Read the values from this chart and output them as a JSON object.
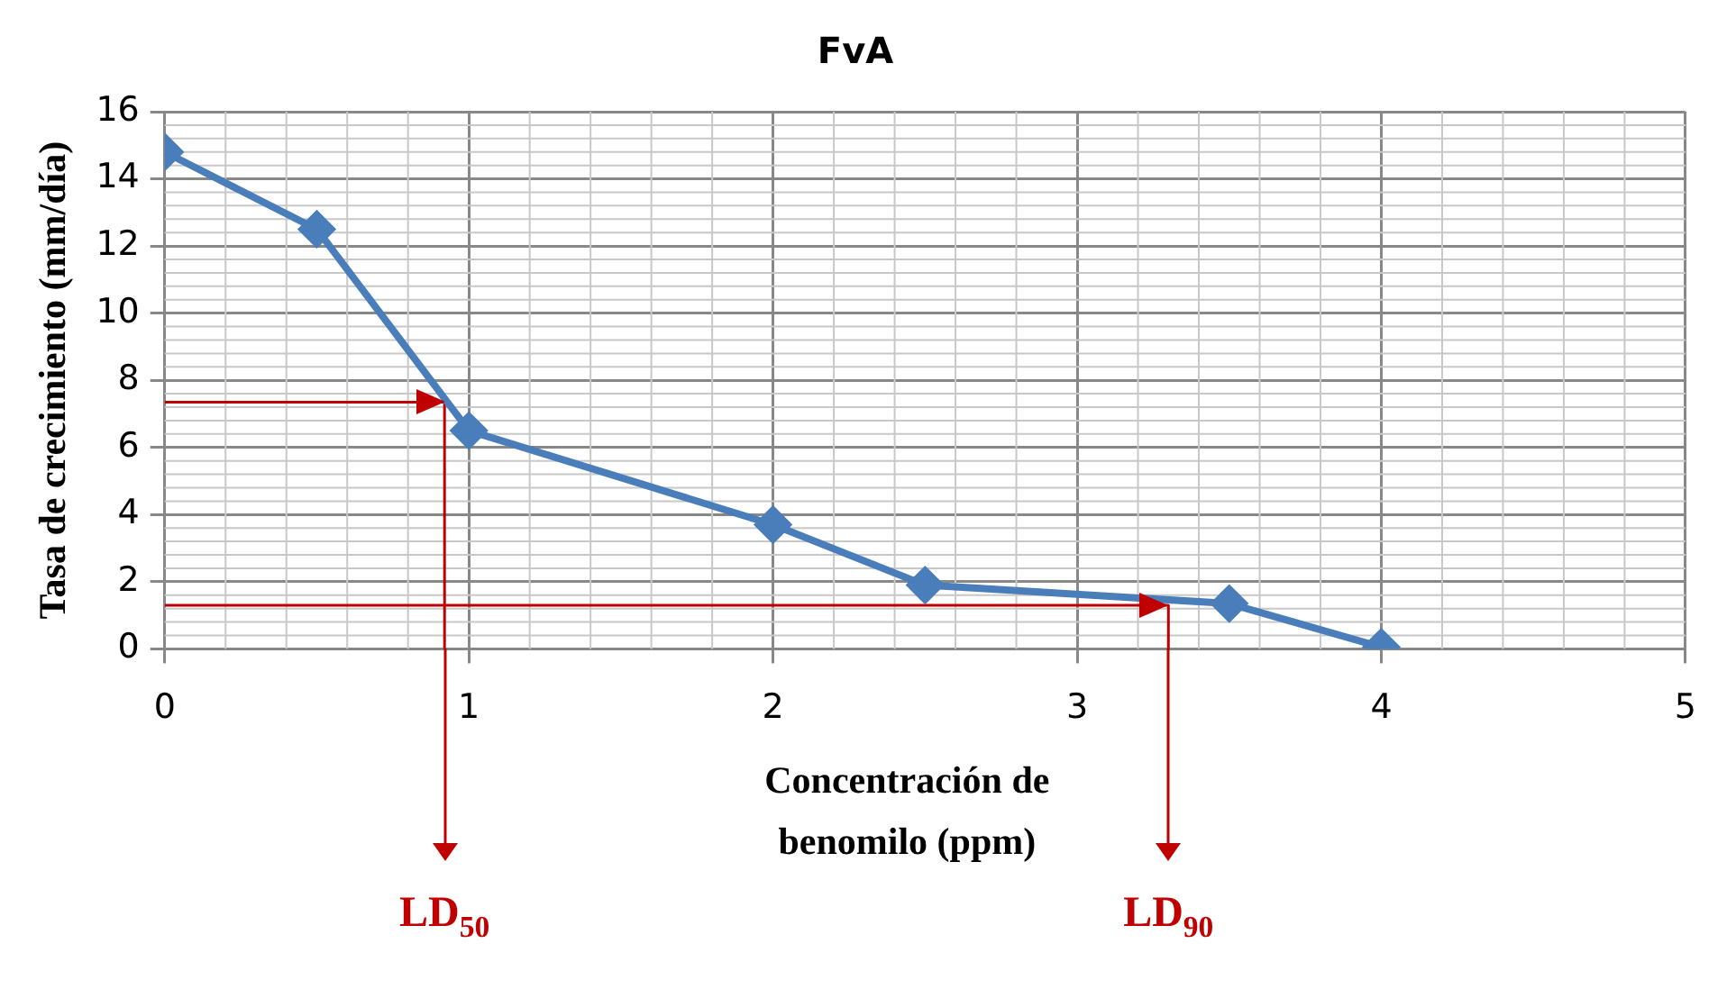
{
  "chart_data": {
    "type": "line",
    "title": "FvA",
    "xlabel": "Concentración de benomilo (ppm)",
    "ylabel": "Tasa de crecimiento (mm/día)",
    "x": [
      0,
      0.5,
      1,
      2,
      2.5,
      3.5,
      4
    ],
    "series": [
      {
        "color": "#4a7ebb",
        "values": [
          14.8,
          12.5,
          6.5,
          3.7,
          1.9,
          1.35,
          0.05
        ]
      },
      {
        "type": "line",
        "color": "#c00000",
        "marker": "none",
        "x": [
          0,
          0.92,
          0.92
        ],
        "values": [
          7.35,
          7.35,
          0
        ]
      },
      {
        "type": "line",
        "color": "#c00000",
        "marker": "none",
        "x": [
          0,
          3.3,
          3.3
        ],
        "values": [
          1.3,
          1.3,
          0
        ]
      }
    ],
    "xlim": [
      0,
      5
    ],
    "xticks": [
      0,
      1,
      2,
      3,
      4,
      5
    ],
    "ylim": [
      0,
      16
    ],
    "yticks": [
      0,
      2,
      4,
      6,
      8,
      10,
      12,
      14,
      16
    ],
    "grid": true,
    "marker": "diamond",
    "line_style": "solid",
    "legend": false,
    "annotations": [
      "LD$_{50}$",
      "LD$_{90}$"
    ]
  }
}
